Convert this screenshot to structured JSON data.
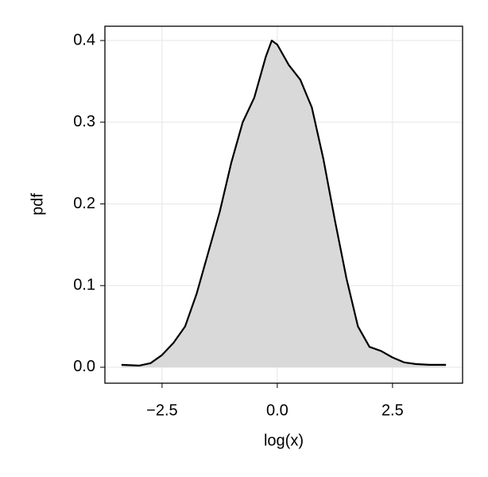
{
  "chart_data": {
    "type": "area",
    "xlabel": "log(x)",
    "ylabel": "pdf",
    "x": [
      -3.38,
      -3.0,
      -2.75,
      -2.5,
      -2.25,
      -2.0,
      -1.75,
      -1.5,
      -1.25,
      -1.0,
      -0.75,
      -0.5,
      -0.25,
      -0.12,
      0.0,
      0.25,
      0.5,
      0.75,
      1.0,
      1.25,
      1.5,
      1.75,
      2.0,
      2.25,
      2.5,
      2.75,
      3.0,
      3.3,
      3.66
    ],
    "values": [
      0.003,
      0.002,
      0.005,
      0.015,
      0.03,
      0.05,
      0.09,
      0.14,
      0.19,
      0.25,
      0.3,
      0.33,
      0.38,
      0.4,
      0.395,
      0.37,
      0.352,
      0.318,
      0.255,
      0.18,
      0.109,
      0.05,
      0.025,
      0.02,
      0.012,
      0.006,
      0.004,
      0.003,
      0.003
    ],
    "color": "#000000",
    "fill": "#d9d9d9",
    "xlim": [
      -3.74,
      4.02
    ],
    "ylim": [
      -0.0195,
      0.4175
    ],
    "xticks": [
      {
        "value": -2.5,
        "label": "−2.5"
      },
      {
        "value": 0,
        "label": "0.0"
      },
      {
        "value": 2.5,
        "label": "2.5"
      }
    ],
    "yticks": [
      {
        "value": 0,
        "label": "0.0"
      },
      0.1,
      0.2,
      0.3,
      0.4
    ],
    "grid": true
  }
}
